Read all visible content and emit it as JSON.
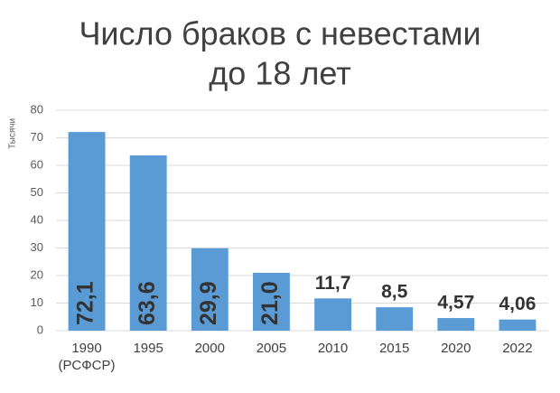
{
  "chart_data": {
    "type": "bar",
    "title": [
      "Число браков с невестами",
      "до 18 лет"
    ],
    "y_label": "Тысячи",
    "categories": [
      "1990\n(РСФСР)",
      "1995",
      "2000",
      "2005",
      "2010",
      "2015",
      "2020",
      "2022"
    ],
    "values": [
      72.1,
      63.6,
      29.9,
      21.0,
      11.7,
      8.5,
      4.57,
      4.06
    ],
    "value_labels": [
      "72,1",
      "63,6",
      "29,9",
      "21,0",
      "11,7",
      "8,5",
      "4,57",
      "4,06"
    ],
    "color": "#5b9bd5",
    "ylim": [
      0,
      80
    ],
    "yticks": [
      0,
      10,
      20,
      30,
      40,
      50,
      60,
      70,
      80
    ],
    "grid": true
  }
}
